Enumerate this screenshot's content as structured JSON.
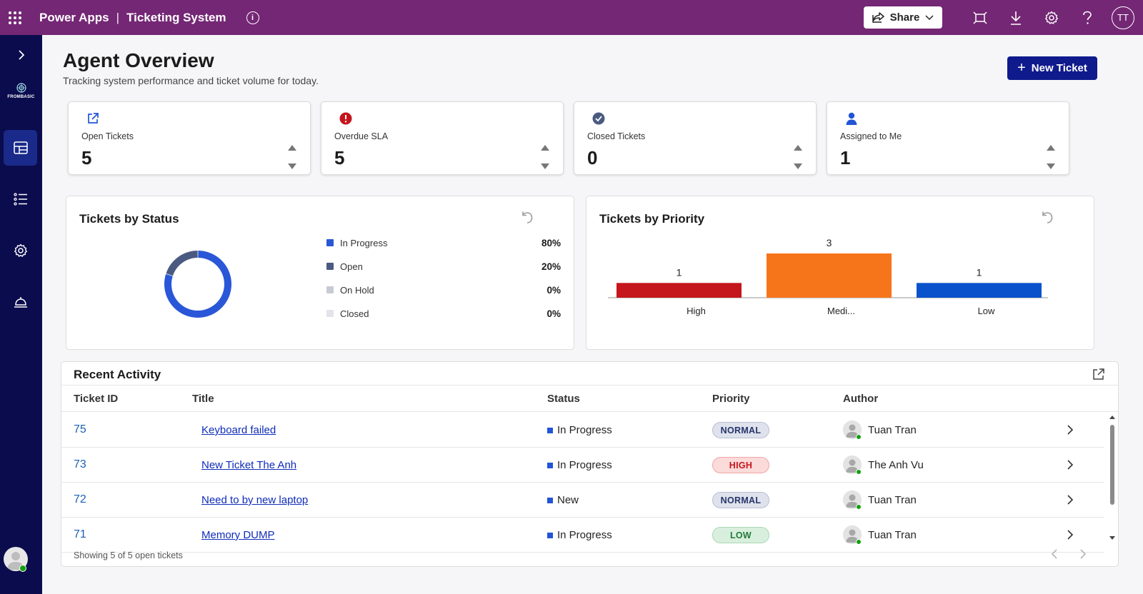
{
  "topbar": {
    "brand": "Power Apps",
    "separator": "|",
    "app_name": "Ticketing System",
    "share_label": "Share",
    "user_initials": "TT",
    "color": "#742774"
  },
  "rail": {
    "logo_text": "FROMBASIC",
    "items": [
      "dashboard-icon",
      "list-icon",
      "settings-icon",
      "service-bell-icon"
    ],
    "color": "#0b0c4d"
  },
  "header": {
    "title": "Agent Overview",
    "subtitle": "Tracking system performance and ticket volume for today.",
    "new_ticket_label": "New Ticket"
  },
  "kpis": [
    {
      "label": "Open Tickets",
      "value": "5",
      "icon": "open-external-icon",
      "color": "#2254d6"
    },
    {
      "label": "Overdue SLA",
      "value": "5",
      "icon": "alert-icon",
      "color": "#c4161c"
    },
    {
      "label": "Closed Tickets",
      "value": "0",
      "icon": "check-circle-icon",
      "color": "#4b5a80"
    },
    {
      "label": "Assigned to Me",
      "value": "1",
      "icon": "person-icon",
      "color": "#2254d6"
    }
  ],
  "status_chart": {
    "title": "Tickets by Status",
    "legend": [
      {
        "label": "In Progress",
        "pct": "80%",
        "color": "#2a57d8"
      },
      {
        "label": "Open",
        "pct": "20%",
        "color": "#4b5a80"
      },
      {
        "label": "On Hold",
        "pct": "0%",
        "color": "#c8cbd6"
      },
      {
        "label": "Closed",
        "pct": "0%",
        "color": "#e2e4ea"
      }
    ]
  },
  "priority_chart": {
    "title": "Tickets by Priority"
  },
  "chart_data": [
    {
      "type": "pie",
      "title": "Tickets by Status",
      "categories": [
        "In Progress",
        "Open",
        "On Hold",
        "Closed"
      ],
      "values": [
        80,
        20,
        0,
        0
      ],
      "unit": "%",
      "colors": [
        "#2a57d8",
        "#4b5a80",
        "#c8cbd6",
        "#e2e4ea"
      ],
      "legend": "right"
    },
    {
      "type": "bar",
      "title": "Tickets by Priority",
      "categories": [
        "High",
        "Medi...",
        "Low"
      ],
      "values": [
        1,
        3,
        1
      ],
      "colors": [
        "#c4161c",
        "#f7751a",
        "#0a52cc"
      ],
      "ylim": [
        0,
        3
      ]
    }
  ],
  "activity": {
    "title": "Recent Activity",
    "columns": {
      "id": "Ticket ID",
      "title": "Title",
      "status": "Status",
      "priority": "Priority",
      "author": "Author"
    },
    "rows": [
      {
        "id": "75",
        "title": "Keyboard failed",
        "status": "In Progress",
        "priority": "NORMAL",
        "author": "Tuan Tran"
      },
      {
        "id": "73",
        "title": "New Ticket The Anh",
        "status": "In Progress",
        "priority": "HIGH",
        "author": "The Anh Vu"
      },
      {
        "id": "72",
        "title": "Need to by new laptop",
        "status": "New",
        "priority": "NORMAL",
        "author": "Tuan Tran"
      },
      {
        "id": "71",
        "title": "Memory DUMP",
        "status": "In Progress",
        "priority": "LOW",
        "author": "Tuan Tran"
      }
    ],
    "priority_styles": {
      "NORMAL": {
        "bg": "#dfe2ec",
        "fg": "#26346b",
        "border": "#b8bed3"
      },
      "HIGH": {
        "bg": "#fbdada",
        "fg": "#c4161c",
        "border": "#f0a6a6"
      },
      "LOW": {
        "bg": "#d9efdd",
        "fg": "#237a3b",
        "border": "#a9d7b4"
      }
    },
    "footer": "Showing 5 of 5 open tickets"
  }
}
